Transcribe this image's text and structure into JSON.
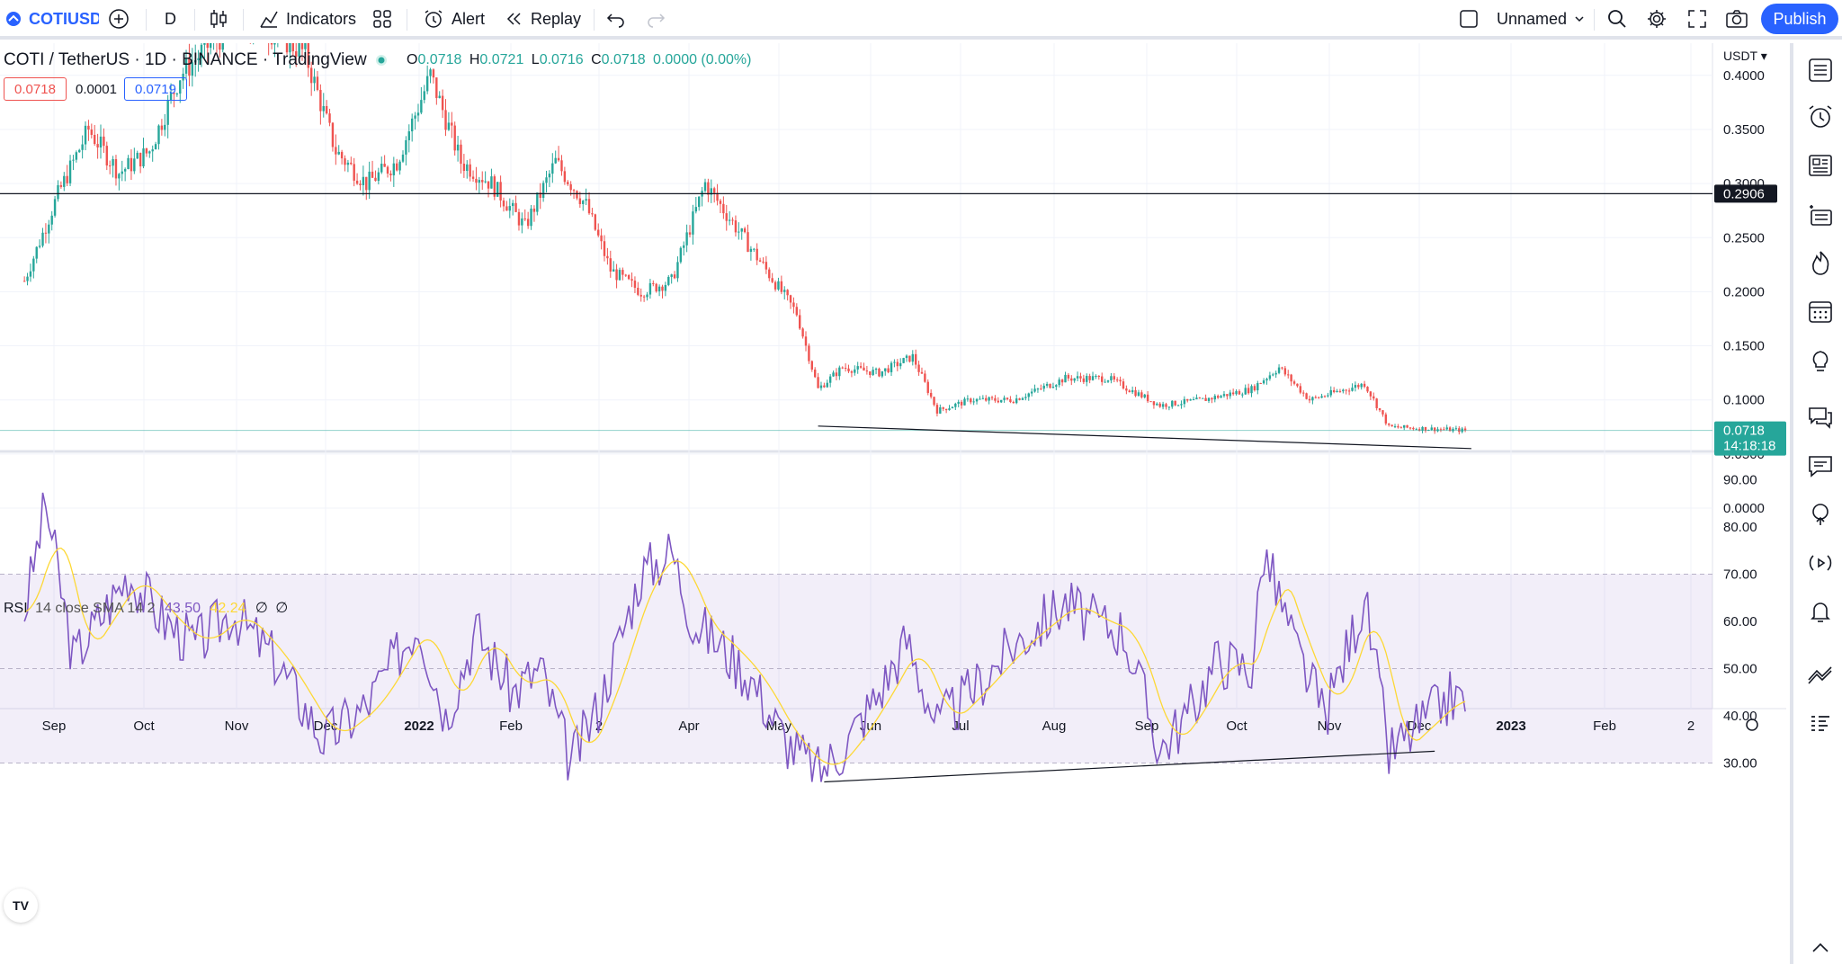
{
  "toolbar": {
    "symbol": "COTIUSD",
    "interval": "D",
    "indicators_label": "Indicators",
    "alert_label": "Alert",
    "replay_label": "Replay",
    "layout_name": "Unnamed",
    "publish_label": "Publish"
  },
  "legend": {
    "title": "COTI / TetherUS · 1D · BINANCE · TradingView",
    "o_label": "O",
    "o_value": "0.0718",
    "h_label": "H",
    "h_value": "0.0721",
    "l_label": "L",
    "l_value": "0.0716",
    "c_label": "C",
    "c_value": "0.0718",
    "change": "0.0000 (0.00%)",
    "sell_price": "0.0718",
    "spread": "0.0001",
    "buy_price": "0.0719"
  },
  "rsi_legend": {
    "name": "RSI",
    "params": "14 close SMA 14 2",
    "value": "43.50",
    "sma_value": "42.24",
    "na1": "∅",
    "na2": "∅"
  },
  "price_axis": {
    "currency": "USDT",
    "ticks": [
      "0.4000",
      "0.3500",
      "0.3000",
      "0.2500",
      "0.2000",
      "0.1500",
      "0.1000",
      "0.0500",
      "0.0000"
    ],
    "hline_label": "0.2906",
    "last_price": "0.0718",
    "countdown": "14:18:18"
  },
  "rsi_axis": {
    "ticks": [
      "90.00",
      "80.00",
      "70.00",
      "60.00",
      "50.00",
      "40.00",
      "30.00"
    ]
  },
  "time_axis": {
    "labels": [
      "Sep",
      "Oct",
      "Nov",
      "Dec",
      "2022",
      "Feb",
      "2",
      "Apr",
      "May",
      "Jun",
      "Jul",
      "Aug",
      "Sep",
      "Oct",
      "Nov",
      "Dec",
      "2023",
      "Feb",
      "2"
    ]
  },
  "colors": {
    "up": "#26a69a",
    "down": "#ef5350",
    "rsi": "#7e57c2",
    "rsi_sma": "#fdd835",
    "accent": "#2962ff"
  },
  "chart_data": {
    "type": "line",
    "series": [
      {
        "name": "COTI / TetherUS",
        "x": [
          "2021-08-25",
          "2021-09-05",
          "2021-09-15",
          "2021-09-25",
          "2021-10-05",
          "2021-10-15",
          "2021-10-25",
          "2021-11-05",
          "2021-11-15",
          "2021-11-25",
          "2021-12-05",
          "2021-12-15",
          "2021-12-25",
          "2022-01-05",
          "2022-01-15",
          "2022-01-25",
          "2022-02-05",
          "2022-02-15",
          "2022-02-25",
          "2022-03-05",
          "2022-03-15",
          "2022-03-25",
          "2022-04-05",
          "2022-04-15",
          "2022-04-25",
          "2022-05-05",
          "2022-05-12",
          "2022-05-20",
          "2022-06-01",
          "2022-06-12",
          "2022-06-20",
          "2022-07-01",
          "2022-07-15",
          "2022-08-01",
          "2022-08-15",
          "2022-09-01",
          "2022-09-15",
          "2022-10-01",
          "2022-10-10",
          "2022-10-20",
          "2022-11-01",
          "2022-11-07",
          "2022-11-15",
          "2022-12-01",
          "2022-12-10"
        ],
        "values": [
          0.21,
          0.29,
          0.35,
          0.31,
          0.33,
          0.4,
          0.43,
          0.45,
          0.44,
          0.42,
          0.33,
          0.3,
          0.32,
          0.4,
          0.32,
          0.3,
          0.26,
          0.32,
          0.28,
          0.22,
          0.2,
          0.21,
          0.3,
          0.26,
          0.22,
          0.18,
          0.11,
          0.13,
          0.125,
          0.14,
          0.09,
          0.1,
          0.1,
          0.12,
          0.12,
          0.095,
          0.1,
          0.11,
          0.13,
          0.1,
          0.11,
          0.115,
          0.075,
          0.073,
          0.0718
        ]
      },
      {
        "name": "RSI",
        "x": [
          "2021-08-25",
          "2021-09-01",
          "2021-09-10",
          "2021-09-20",
          "2021-09-28",
          "2021-10-10",
          "2021-10-20",
          "2021-11-01",
          "2021-11-15",
          "2021-12-01",
          "2021-12-15",
          "2022-01-01",
          "2022-01-10",
          "2022-01-20",
          "2022-02-01",
          "2022-02-10",
          "2022-02-20",
          "2022-03-01",
          "2022-03-15",
          "2022-03-25",
          "2022-04-01",
          "2022-04-10",
          "2022-04-20",
          "2022-05-01",
          "2022-05-12",
          "2022-05-20",
          "2022-06-01",
          "2022-06-10",
          "2022-06-20",
          "2022-07-01",
          "2022-07-15",
          "2022-08-01",
          "2022-08-10",
          "2022-08-20",
          "2022-09-01",
          "2022-09-10",
          "2022-09-20",
          "2022-10-01",
          "2022-10-05",
          "2022-10-15",
          "2022-10-25",
          "2022-11-07",
          "2022-11-15",
          "2022-11-25",
          "2022-12-05",
          "2022-12-10"
        ],
        "values": [
          62,
          85,
          52,
          62,
          70,
          60,
          55,
          62,
          52,
          35,
          42,
          60,
          40,
          58,
          45,
          50,
          30,
          42,
          70,
          75,
          60,
          55,
          48,
          35,
          28,
          33,
          45,
          56,
          38,
          45,
          55,
          64,
          60,
          58,
          33,
          40,
          52,
          50,
          75,
          55,
          40,
          65,
          32,
          38,
          44,
          43.5
        ]
      }
    ],
    "ylabel": "USDT",
    "ylim": [
      0,
      0.45
    ],
    "rsi_ylim": [
      25,
      90
    ],
    "rsi_band": [
      30,
      70
    ],
    "horizontal_line": 0.2906,
    "grid": true
  }
}
